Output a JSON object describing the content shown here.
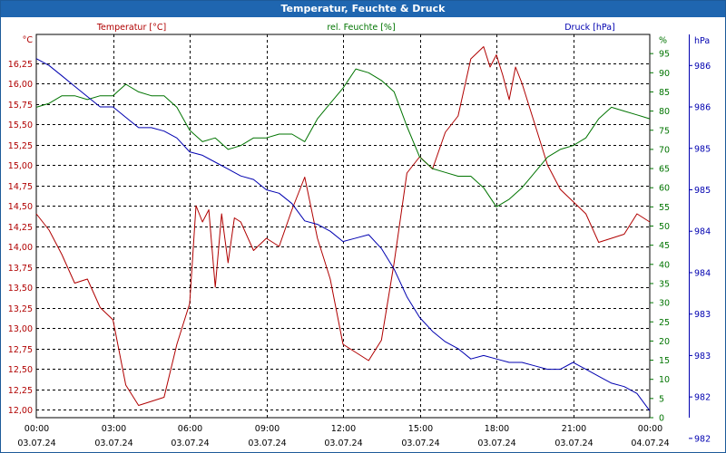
{
  "window": {
    "title": "Temperatur, Feuchte & Druck"
  },
  "colors": {
    "temperature": "#b00000",
    "humidity": "#007400",
    "pressure": "#0000b0",
    "grid": "#000000"
  },
  "chart_data": {
    "type": "line",
    "title": "Temperatur, Feuchte & Druck",
    "grid": true,
    "x_axis": {
      "range": [
        "03.07.24 00:00",
        "04.07.24 00:00"
      ],
      "ticks": [
        {
          "hour": 0,
          "time": "00:00",
          "date": "03.07.24"
        },
        {
          "hour": 3,
          "time": "03:00",
          "date": "03.07.24"
        },
        {
          "hour": 6,
          "time": "06:00",
          "date": "03.07.24"
        },
        {
          "hour": 9,
          "time": "09:00",
          "date": "03.07.24"
        },
        {
          "hour": 12,
          "time": "12:00",
          "date": "03.07.24"
        },
        {
          "hour": 15,
          "time": "15:00",
          "date": "03.07.24"
        },
        {
          "hour": 18,
          "time": "18:00",
          "date": "03.07.24"
        },
        {
          "hour": 21,
          "time": "21:00",
          "date": "03.07.24"
        },
        {
          "hour": 24,
          "time": "00:00",
          "date": "04.07.24"
        }
      ]
    },
    "axes": {
      "temperature": {
        "label": "Temperatur [°C]",
        "unit": "°C",
        "range": [
          11.9,
          16.6
        ],
        "ticks": [
          "16,25",
          "16,00",
          "15,75",
          "15,50",
          "15,25",
          "15,00",
          "14,75",
          "14,50",
          "14,25",
          "14,00",
          "13,75",
          "13,50",
          "13,25",
          "13,00",
          "12,75",
          "12,50",
          "12,25",
          "12,00"
        ],
        "tick_values": [
          16.25,
          16.0,
          15.75,
          15.5,
          15.25,
          15.0,
          14.75,
          14.5,
          14.25,
          14.0,
          13.75,
          13.5,
          13.25,
          13.0,
          12.75,
          12.5,
          12.25,
          12.0
        ]
      },
      "humidity": {
        "label": "rel. Feuchte [%]",
        "unit": "%",
        "range": [
          0,
          100
        ],
        "ticks": [
          "95",
          "90",
          "85",
          "80",
          "75",
          "70",
          "65",
          "60",
          "55",
          "50",
          "45",
          "40",
          "35",
          "30",
          "25",
          "20",
          "15",
          "10",
          "5",
          "0"
        ],
        "tick_values": [
          95,
          90,
          85,
          80,
          75,
          70,
          65,
          60,
          55,
          50,
          45,
          40,
          35,
          30,
          25,
          20,
          15,
          10,
          5,
          0
        ]
      },
      "pressure": {
        "label": "Druck [hPa]",
        "unit": "hPa",
        "range": [
          981.3,
          986.85
        ],
        "ticks": [
          "986",
          "986",
          "985",
          "985",
          "984",
          "984",
          "983",
          "983",
          "982",
          "982"
        ],
        "tick_values": [
          986.4,
          985.8,
          985.2,
          984.6,
          984.0,
          983.4,
          982.8,
          982.2,
          981.6,
          981.0
        ]
      }
    },
    "series": [
      {
        "name": "Temperatur [°C]",
        "axis": "temperature",
        "x": [
          0,
          0.5,
          1,
          1.5,
          2,
          2.5,
          3,
          3.5,
          4,
          4.5,
          5,
          5.5,
          6,
          6.25,
          6.5,
          6.75,
          7,
          7.25,
          7.5,
          7.75,
          8,
          8.5,
          9,
          9.5,
          10,
          10.5,
          11,
          11.25,
          11.5,
          12,
          12.5,
          13,
          13.5,
          14,
          14.5,
          15,
          15.5,
          16,
          16.5,
          17,
          17.5,
          17.75,
          18,
          18.25,
          18.5,
          18.75,
          19,
          19.5,
          20,
          20.5,
          21,
          21.5,
          22,
          22.5,
          23,
          23.5,
          24
        ],
        "values": [
          14.4,
          14.2,
          13.9,
          13.55,
          13.6,
          13.25,
          13.1,
          12.3,
          12.05,
          12.1,
          12.15,
          12.8,
          13.3,
          14.5,
          14.3,
          14.45,
          13.5,
          14.4,
          13.8,
          14.35,
          14.3,
          13.95,
          14.1,
          14.0,
          14.45,
          14.85,
          14.1,
          13.85,
          13.6,
          12.8,
          12.7,
          12.6,
          12.85,
          13.8,
          14.9,
          15.1,
          14.95,
          15.4,
          15.6,
          16.3,
          16.45,
          16.2,
          16.35,
          16.1,
          15.8,
          16.2,
          16.0,
          15.5,
          15.0,
          14.7,
          14.55,
          14.4,
          14.05,
          14.1,
          14.15,
          14.4,
          14.3
        ]
      },
      {
        "name": "rel. Feuchte [%]",
        "axis": "humidity",
        "x": [
          0,
          0.5,
          1,
          1.5,
          2,
          2.5,
          3,
          3.5,
          4,
          4.5,
          5,
          5.5,
          6,
          6.5,
          7,
          7.5,
          8,
          8.5,
          9,
          9.5,
          10,
          10.5,
          11,
          11.5,
          12,
          12.5,
          13,
          13.5,
          14,
          14.5,
          15,
          15.5,
          16,
          16.5,
          17,
          17.5,
          18,
          18.5,
          19,
          19.5,
          20,
          20.5,
          21,
          21.5,
          22,
          22.5,
          23,
          23.5,
          24
        ],
        "values": [
          81,
          82,
          84,
          84,
          83,
          84,
          84,
          87,
          85,
          84,
          84,
          81,
          75,
          72,
          73,
          70,
          71,
          73,
          73,
          74,
          74,
          72,
          78,
          82,
          86,
          91,
          90,
          88,
          85,
          76,
          68,
          65,
          64,
          63,
          63,
          60,
          55,
          57,
          60,
          64,
          68,
          70,
          71,
          73,
          78,
          81,
          80,
          79,
          78
        ]
      },
      {
        "name": "Druck [hPa]",
        "axis": "pressure",
        "x": [
          0,
          0.5,
          1,
          1.5,
          2,
          2.5,
          3,
          3.5,
          4,
          4.5,
          5,
          5.5,
          6,
          6.5,
          7,
          7.5,
          8,
          8.5,
          9,
          9.5,
          10,
          10.5,
          11,
          11.5,
          12,
          12.5,
          13,
          13.5,
          14,
          14.5,
          15,
          15.5,
          16,
          16.5,
          17,
          17.5,
          18,
          18.5,
          19,
          19.5,
          20,
          20.5,
          21,
          21.5,
          22,
          22.5,
          23,
          23.5,
          24
        ],
        "values": [
          986.5,
          986.4,
          986.25,
          986.1,
          985.95,
          985.8,
          985.8,
          985.65,
          985.5,
          985.5,
          985.45,
          985.35,
          985.15,
          985.1,
          985.0,
          984.9,
          984.8,
          984.75,
          984.6,
          984.55,
          984.4,
          984.15,
          984.1,
          984.0,
          983.85,
          983.9,
          983.95,
          983.75,
          983.45,
          983.05,
          982.75,
          982.55,
          982.4,
          982.3,
          982.15,
          982.2,
          982.15,
          982.1,
          982.1,
          982.05,
          982.0,
          982.0,
          982.1,
          982.0,
          981.9,
          981.8,
          981.75,
          981.65,
          981.4
        ]
      }
    ]
  }
}
